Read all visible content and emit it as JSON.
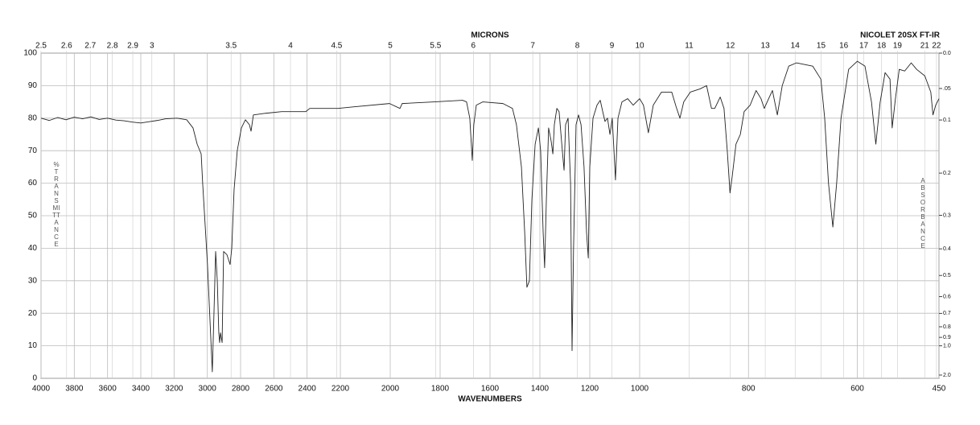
{
  "chart_data": {
    "type": "line",
    "title": "NICOLET 20SX FT-IR",
    "xlabel": "WAVENUMBERS",
    "x2label": "MICRONS",
    "ylabel": "%TRANSMITTANCE",
    "y2label": "ABSORBANCE",
    "color": "#222222",
    "grid": true,
    "xscale": "piecewise",
    "xscale_breaks": [
      2200,
      1000
    ],
    "x2scale": "reciprocal",
    "y2scale": "absorbance",
    "xlim": [
      4000,
      450
    ],
    "ylim": [
      0,
      100
    ],
    "xticks": [
      4000,
      3800,
      3600,
      3400,
      3200,
      3000,
      2800,
      2600,
      2400,
      2200,
      2000,
      1800,
      1600,
      1400,
      1200,
      1000,
      800,
      600,
      450
    ],
    "yticks": [
      0,
      10,
      20,
      30,
      40,
      50,
      60,
      70,
      80,
      90,
      100
    ],
    "x2ticks": [
      2.5,
      2.6,
      2.7,
      2.8,
      2.9,
      3,
      3.5,
      4,
      4.5,
      5,
      5.5,
      6,
      7,
      8,
      9,
      10,
      11,
      12,
      13,
      14,
      15,
      16,
      17,
      18,
      19,
      21,
      22
    ],
    "y2ticks": [
      {
        "value": 0,
        "label": "0.0"
      },
      {
        "value": 0.05,
        "label": ".05"
      },
      {
        "value": 0.1,
        "label": "0.1"
      },
      {
        "value": 0.2,
        "label": "0.2"
      },
      {
        "value": 0.3,
        "label": "0.3"
      },
      {
        "value": 0.4,
        "label": "0.4"
      },
      {
        "value": 0.5,
        "label": "0.5"
      },
      {
        "value": 0.6,
        "label": "0.6"
      },
      {
        "value": 0.7,
        "label": "0.7"
      },
      {
        "value": 0.8,
        "label": "0.8"
      },
      {
        "value": 0.9,
        "label": "0.9"
      },
      {
        "value": 1,
        "label": "1.0"
      },
      {
        "value": 2,
        "label": "2.0"
      }
    ],
    "x": [
      4000,
      3950,
      3900,
      3850,
      3800,
      3750,
      3700,
      3650,
      3600,
      3550,
      3500,
      3450,
      3400,
      3350,
      3300,
      3250,
      3182,
      3124,
      3086,
      3061,
      3037,
      3028,
      2999,
      2970,
      2960,
      2950,
      2940,
      2931,
      2926,
      2921,
      2911,
      2902,
      2882,
      2863,
      2853,
      2839,
      2820,
      2795,
      2771,
      2747,
      2737,
      2723,
      2650,
      2553,
      2408,
      2384,
      2215,
      2145,
      2003,
      1961,
      1952,
      1823,
      1710,
      1694,
      1681,
      1671,
      1665,
      1655,
      1629,
      1548,
      1510,
      1494,
      1474,
      1461,
      1452,
      1442,
      1432,
      1419,
      1406,
      1397,
      1387,
      1381,
      1374,
      1365,
      1355,
      1348,
      1342,
      1332,
      1323,
      1310,
      1303,
      1297,
      1287,
      1277,
      1271,
      1265,
      1255,
      1245,
      1235,
      1223,
      1213,
      1206,
      1200,
      1187,
      1171,
      1158,
      1148,
      1139,
      1129,
      1119,
      1110,
      1103,
      1097,
      1087,
      1071,
      1048,
      1026,
      1000,
      993,
      984,
      975,
      960,
      941,
      933,
      926,
      919,
      907,
      889,
      877,
      868,
      862,
      852,
      845,
      839,
      834,
      830,
      823,
      815,
      808,
      797,
      786,
      777,
      771,
      763,
      756,
      747,
      738,
      726,
      712,
      682,
      667,
      660,
      653,
      645,
      638,
      630,
      616,
      600,
      586,
      574,
      566,
      558,
      549,
      540,
      536,
      530,
      523,
      513,
      501,
      491,
      476,
      465,
      461,
      456,
      450
    ],
    "values": [
      80,
      79.3,
      80.2,
      79.5,
      80.3,
      79.8,
      80.4,
      79.6,
      80,
      79.4,
      79.2,
      78.8,
      78.5,
      78.9,
      79.3,
      79.8,
      80,
      79.5,
      77,
      72,
      69,
      60,
      35,
      2,
      20,
      39,
      30,
      14,
      11,
      14,
      11,
      39,
      38,
      35,
      40,
      58,
      70,
      77,
      79.5,
      78,
      76,
      81,
      81.5,
      82,
      82,
      83,
      83,
      83.5,
      84.5,
      83,
      84.5,
      85,
      85.5,
      85,
      80,
      67,
      78,
      84,
      85,
      84.5,
      83,
      78,
      65,
      45,
      28,
      30,
      55,
      72,
      77,
      70,
      45,
      34,
      55,
      77,
      73,
      69,
      78,
      83,
      82,
      70,
      64,
      78,
      80,
      60,
      8.5,
      40,
      78,
      81,
      78,
      65,
      45,
      37,
      65,
      80,
      84,
      85.5,
      82,
      79,
      80,
      75,
      80,
      70,
      61,
      80,
      85,
      86,
      84,
      86,
      84,
      75.5,
      84,
      88,
      88,
      83.5,
      80,
      85,
      88,
      89,
      90,
      83,
      83,
      86.5,
      83,
      70,
      57,
      62,
      72,
      75,
      82,
      84,
      88.5,
      86,
      83,
      86,
      88.5,
      81,
      90,
      96,
      97,
      96,
      92,
      80,
      60,
      46.5,
      60,
      80,
      95,
      97.5,
      96,
      85,
      72,
      85,
      94,
      92,
      77,
      86,
      95,
      94.5,
      97,
      95,
      93,
      88,
      81,
      84,
      86
    ]
  }
}
